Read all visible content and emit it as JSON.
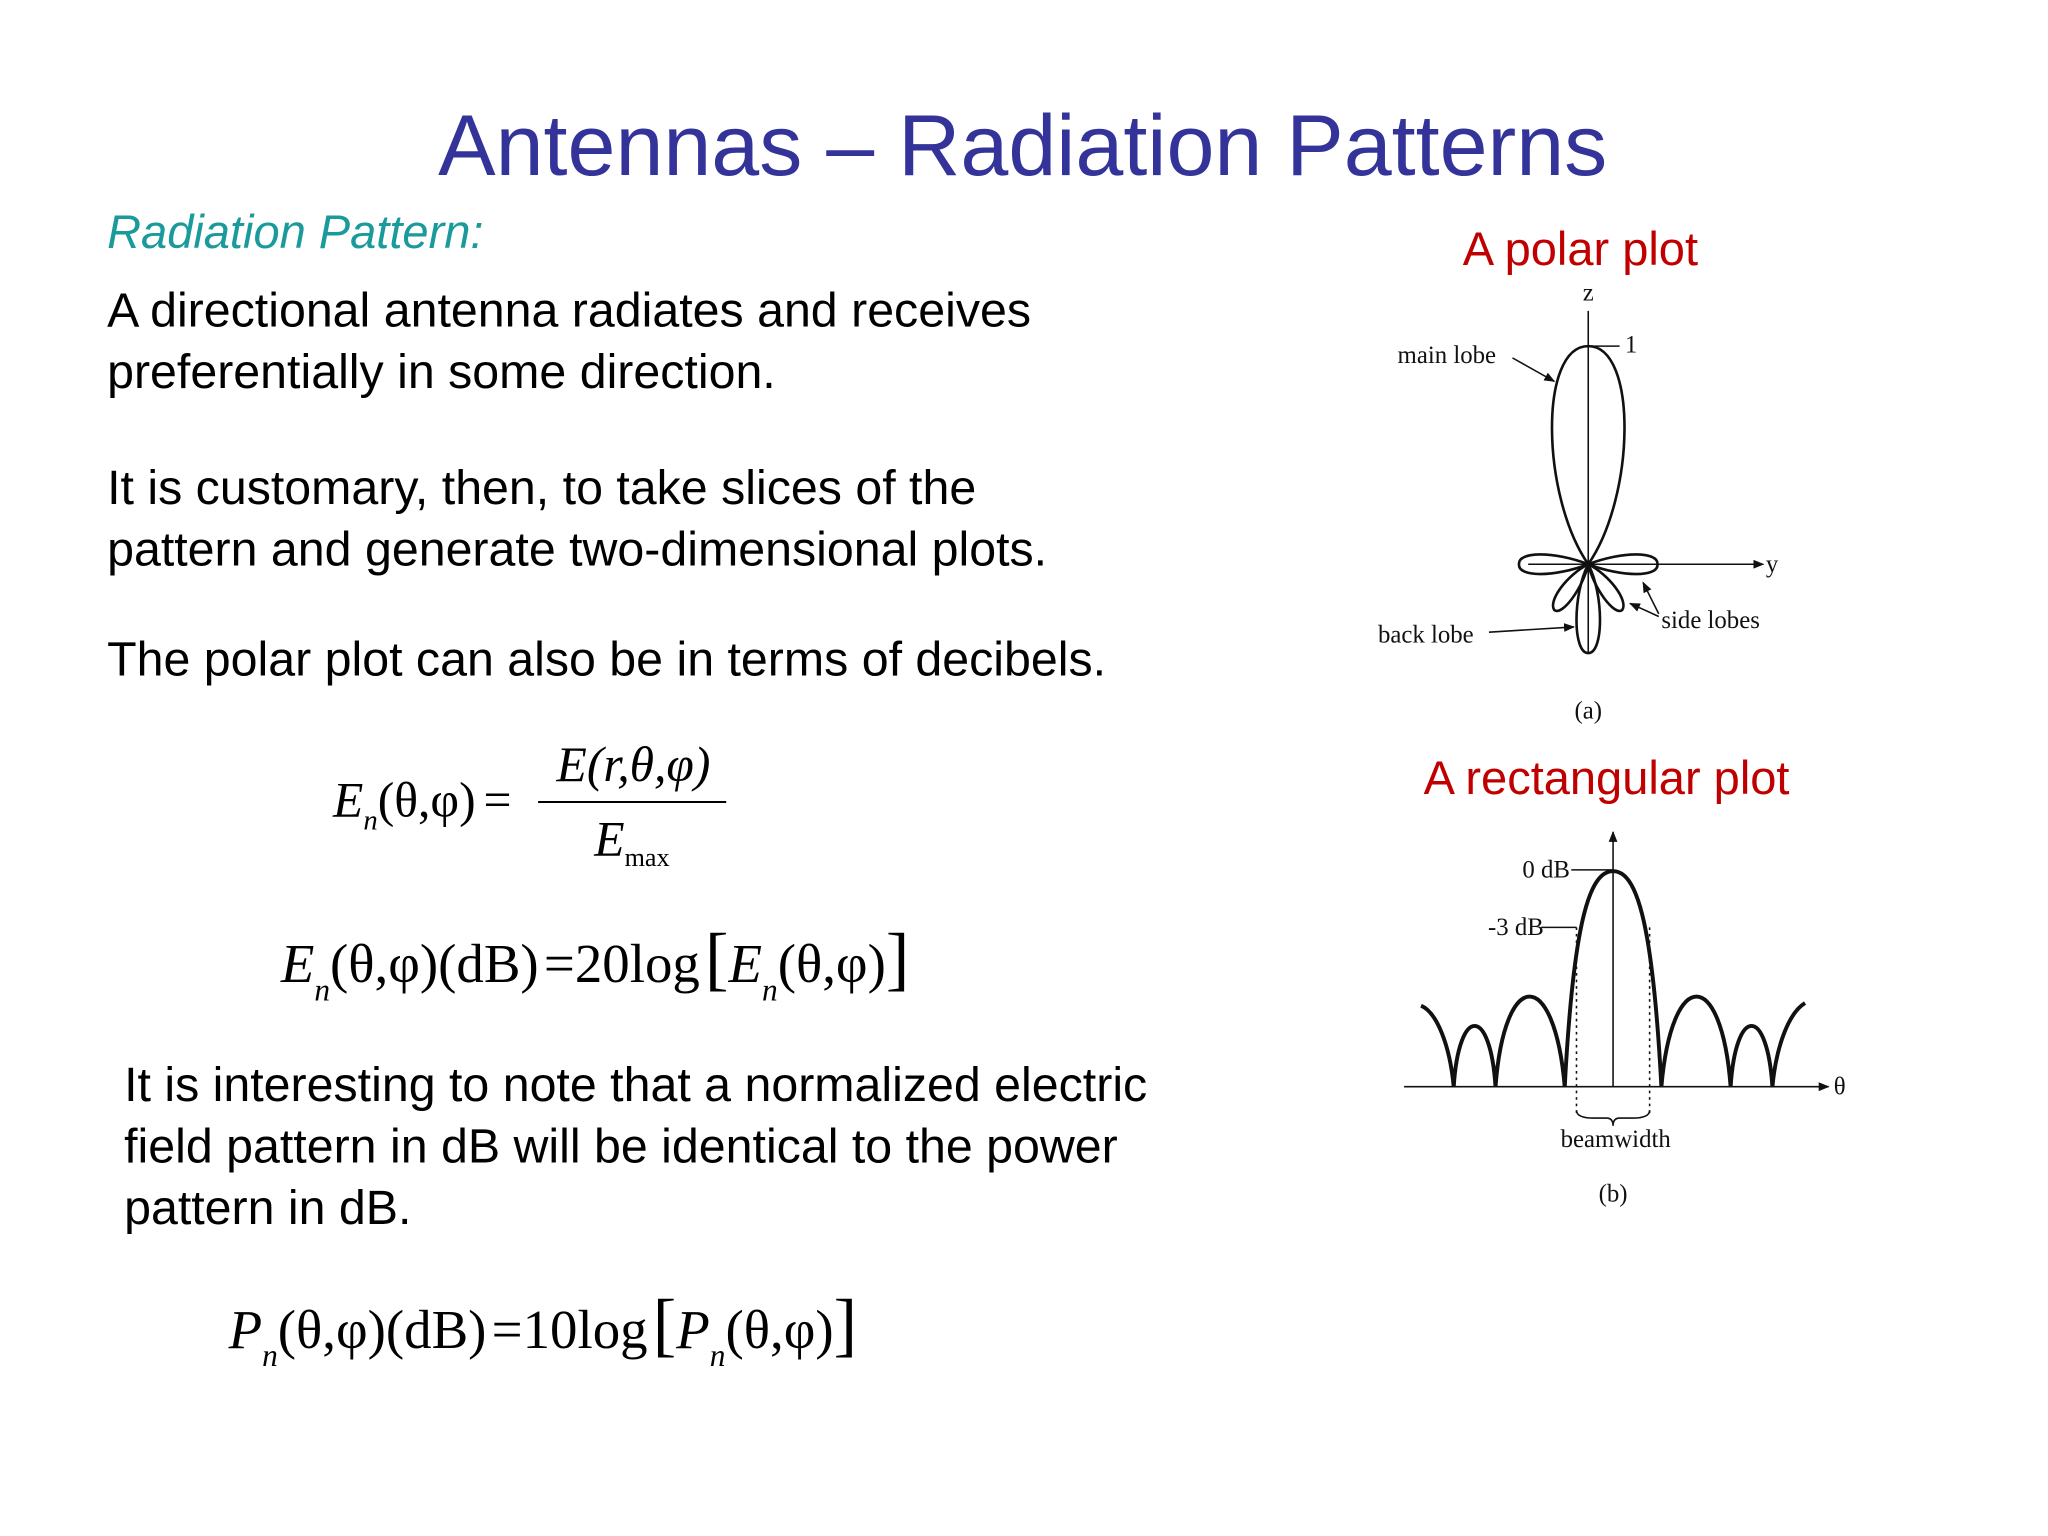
{
  "slide": {
    "title": "Antennas – Radiation Patterns",
    "subtitle": "Radiation Pattern:",
    "paragraphs": [
      [
        "A directional antenna radiates and receives",
        "preferentially in some direction."
      ],
      [
        "It is customary, then, to take slices of the",
        "pattern and generate two-dimensional plots."
      ],
      [
        "The polar plot can also be in terms of decibels."
      ],
      [
        "It is interesting to note that a normalized electric",
        "field pattern in dB will be identical to the power",
        "pattern in dB."
      ]
    ],
    "eq1": {
      "lhs": "E",
      "lhs_sub": "n",
      "lhs_args": "(θ,φ)",
      "eq": "=",
      "num": "E(r,θ,φ)",
      "den": "E",
      "den_sub": "max"
    },
    "eq2": {
      "lhs": "E",
      "lhs_sub": "n",
      "args": "(θ,φ)(dB)",
      "eq": "=",
      "coef": "20",
      "log": "log",
      "open": "[",
      "inner": "E",
      "inner_sub": "n",
      "inner_args": "(θ,φ)",
      "close": "]"
    },
    "eq3": {
      "lhs": "P",
      "lhs_sub": "n",
      "args": "(θ,φ)(dB)",
      "eq": "=",
      "coef": "10",
      "log": "log",
      "open": "[",
      "inner": "P",
      "inner_sub": "n",
      "inner_args": "(θ,φ)",
      "close": "]"
    },
    "polar": {
      "heading": "A polar plot",
      "z": "z",
      "one": "1",
      "main_lobe": "main lobe",
      "y": "y",
      "side_lobes": "side lobes",
      "back_lobe": "back lobe",
      "caption": "(a)"
    },
    "rect": {
      "heading": "A rectangular plot",
      "zero_db": "0 dB",
      "minus3_db": "-3 dB",
      "theta": "θ",
      "beamwidth": "beamwidth",
      "caption": "(b)"
    }
  }
}
